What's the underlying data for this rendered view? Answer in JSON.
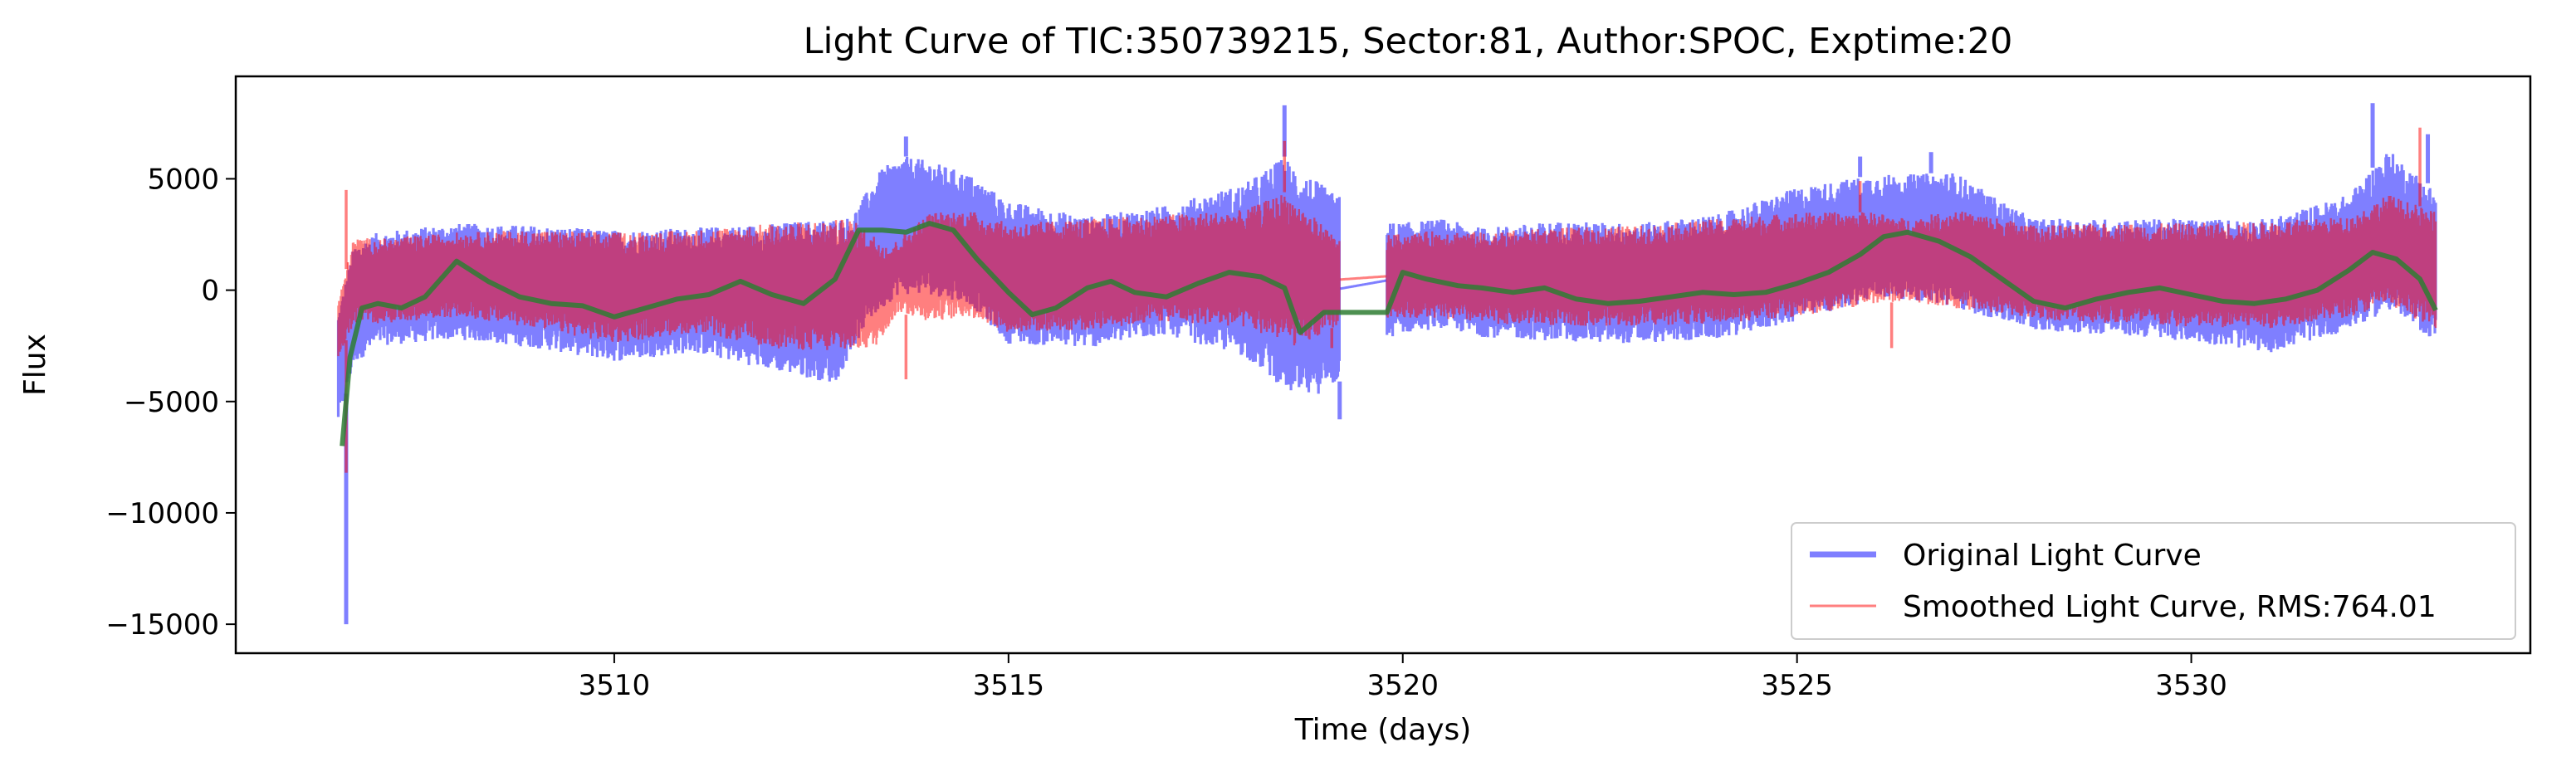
{
  "chart_data": {
    "type": "line",
    "title": "Light Curve of TIC:350739215, Sector:81, Author:SPOC, Exptime:20",
    "xlabel": "Time (days)",
    "ylabel": "Flux",
    "xlim": [
      3505.2,
      3534.3
    ],
    "ylim": [
      -16300,
      9600
    ],
    "xticks": [
      3510,
      3515,
      3520,
      3525,
      3530
    ],
    "xtick_labels": [
      "3510",
      "3515",
      "3520",
      "3525",
      "3530"
    ],
    "yticks": [
      -15000,
      -10000,
      -5000,
      0,
      5000
    ],
    "ytick_labels": [
      "−15000",
      "−10000",
      "−5000",
      "0",
      "5000"
    ],
    "grid": false,
    "legend_position": "lower-right",
    "gap": [
      3519.2,
      3519.8
    ],
    "series": [
      {
        "name": "Original Light Curve",
        "color": "#0000ff",
        "opacity": 0.5,
        "style": "noisy",
        "upper": [
          [
            3506.5,
            -1000
          ],
          [
            3506.7,
            2000
          ],
          [
            3507,
            2600
          ],
          [
            3508,
            3000
          ],
          [
            3509,
            2900
          ],
          [
            3510,
            2700
          ],
          [
            3511,
            2800
          ],
          [
            3512,
            3000
          ],
          [
            3513,
            3300
          ],
          [
            3513.4,
            5500
          ],
          [
            3513.7,
            6000
          ],
          [
            3514,
            5800
          ],
          [
            3514.5,
            5200
          ],
          [
            3515,
            4000
          ],
          [
            3516,
            3300
          ],
          [
            3517,
            3800
          ],
          [
            3518,
            4800
          ],
          [
            3518.5,
            6000
          ],
          [
            3519.1,
            4400
          ],
          [
            3519.9,
            3000
          ],
          [
            3520.5,
            3200
          ],
          [
            3521,
            2800
          ],
          [
            3522,
            3100
          ],
          [
            3523,
            3000
          ],
          [
            3524,
            3400
          ],
          [
            3525,
            4600
          ],
          [
            3526,
            5200
          ],
          [
            3526.4,
            5200
          ],
          [
            3527,
            5300
          ],
          [
            3527.5,
            4200
          ],
          [
            3528,
            3200
          ],
          [
            3529,
            3200
          ],
          [
            3530,
            3200
          ],
          [
            3531,
            3200
          ],
          [
            3532,
            4300
          ],
          [
            3532.5,
            6300
          ],
          [
            3533.1,
            4500
          ]
        ],
        "lower": [
          [
            3506.5,
            -6000
          ],
          [
            3506.7,
            -3300
          ],
          [
            3507,
            -2500
          ],
          [
            3508,
            -2200
          ],
          [
            3509,
            -2600
          ],
          [
            3510,
            -3200
          ],
          [
            3511,
            -2800
          ],
          [
            3512,
            -3600
          ],
          [
            3512.8,
            -4200
          ],
          [
            3513.2,
            -1500
          ],
          [
            3513.6,
            -200
          ],
          [
            3514,
            -200
          ],
          [
            3514.5,
            -600
          ],
          [
            3515,
            -2400
          ],
          [
            3516,
            -2600
          ],
          [
            3517,
            -2000
          ],
          [
            3518,
            -3000
          ],
          [
            3518.7,
            -5000
          ],
          [
            3519.1,
            -4400
          ],
          [
            3519.9,
            -2000
          ],
          [
            3520.5,
            -1700
          ],
          [
            3521,
            -2100
          ],
          [
            3522,
            -2300
          ],
          [
            3523,
            -2400
          ],
          [
            3524,
            -2200
          ],
          [
            3525,
            -1400
          ],
          [
            3526,
            -400
          ],
          [
            3526.4,
            -400
          ],
          [
            3527,
            -800
          ],
          [
            3528,
            -1800
          ],
          [
            3529,
            -2000
          ],
          [
            3530,
            -2300
          ],
          [
            3531,
            -2800
          ],
          [
            3532,
            -1800
          ],
          [
            3532.5,
            -900
          ],
          [
            3533.1,
            -2300
          ]
        ],
        "spikes": [
          [
            3506.6,
            -15000
          ],
          [
            3513.7,
            6900
          ],
          [
            3518.5,
            8300
          ],
          [
            3519.2,
            -5800
          ],
          [
            3525.8,
            6000
          ],
          [
            3526.7,
            6200
          ],
          [
            3532.3,
            8400
          ],
          [
            3533,
            7000
          ]
        ]
      },
      {
        "name": "Smoothed Light Curve, RMS:764.01",
        "color": "#ff0000",
        "opacity": 0.5,
        "style": "noisy",
        "upper": [
          [
            3506.5,
            -500
          ],
          [
            3506.7,
            2400
          ],
          [
            3507,
            2300
          ],
          [
            3508,
            2600
          ],
          [
            3509,
            2700
          ],
          [
            3510,
            2600
          ],
          [
            3511,
            2700
          ],
          [
            3512,
            3000
          ],
          [
            3513,
            3200
          ],
          [
            3513.5,
            2000
          ],
          [
            3514,
            3500
          ],
          [
            3514.5,
            3600
          ],
          [
            3515,
            3000
          ],
          [
            3516,
            3200
          ],
          [
            3517,
            3400
          ],
          [
            3518,
            3600
          ],
          [
            3518.5,
            4400
          ],
          [
            3519.1,
            2600
          ],
          [
            3519.9,
            2500
          ],
          [
            3520.5,
            2700
          ],
          [
            3521,
            2600
          ],
          [
            3522,
            2800
          ],
          [
            3523,
            2900
          ],
          [
            3524,
            3200
          ],
          [
            3525,
            3500
          ],
          [
            3526,
            3500
          ],
          [
            3526.4,
            3200
          ],
          [
            3527,
            3600
          ],
          [
            3527.5,
            3300
          ],
          [
            3528,
            2900
          ],
          [
            3529,
            3000
          ],
          [
            3530,
            3000
          ],
          [
            3531,
            3100
          ],
          [
            3532,
            3300
          ],
          [
            3532.5,
            4300
          ],
          [
            3533.1,
            3500
          ]
        ],
        "lower": [
          [
            3506.5,
            -3000
          ],
          [
            3506.7,
            -1500
          ],
          [
            3507,
            -1500
          ],
          [
            3508,
            -1200
          ],
          [
            3509,
            -1700
          ],
          [
            3510,
            -2400
          ],
          [
            3511,
            -1900
          ],
          [
            3512,
            -2600
          ],
          [
            3512.8,
            -2800
          ],
          [
            3513.3,
            -2600
          ],
          [
            3513.6,
            -1000
          ],
          [
            3514,
            -1400
          ],
          [
            3514.5,
            -1200
          ],
          [
            3515,
            -1900
          ],
          [
            3516,
            -1800
          ],
          [
            3517,
            -1400
          ],
          [
            3518,
            -1700
          ],
          [
            3518.7,
            -2600
          ],
          [
            3519.1,
            -1700
          ],
          [
            3519.9,
            -1200
          ],
          [
            3520.5,
            -1300
          ],
          [
            3521,
            -1500
          ],
          [
            3522,
            -1600
          ],
          [
            3523,
            -1600
          ],
          [
            3524,
            -1500
          ],
          [
            3525,
            -1200
          ],
          [
            3526,
            -600
          ],
          [
            3526.4,
            -500
          ],
          [
            3527,
            -800
          ],
          [
            3528,
            -1300
          ],
          [
            3529,
            -1500
          ],
          [
            3530,
            -1700
          ],
          [
            3531,
            -1700
          ],
          [
            3532,
            -1200
          ],
          [
            3532.5,
            -700
          ],
          [
            3533.1,
            -1700
          ]
        ],
        "spikes": [
          [
            3506.6,
            4500
          ],
          [
            3506.6,
            -8200
          ],
          [
            3513.7,
            -4000
          ],
          [
            3518.5,
            6700
          ],
          [
            3519.1,
            -2600
          ],
          [
            3525.8,
            4900
          ],
          [
            3526.2,
            -2600
          ],
          [
            3532.9,
            7300
          ]
        ]
      },
      {
        "name": "",
        "color": "#2e7d32",
        "opacity": 0.85,
        "style": "trend",
        "points": [
          [
            3506.55,
            -7000
          ],
          [
            3506.65,
            -3000
          ],
          [
            3506.8,
            -800
          ],
          [
            3507,
            -600
          ],
          [
            3507.3,
            -800
          ],
          [
            3507.6,
            -300
          ],
          [
            3508,
            1300
          ],
          [
            3508.4,
            400
          ],
          [
            3508.8,
            -300
          ],
          [
            3509.2,
            -600
          ],
          [
            3509.6,
            -700
          ],
          [
            3510,
            -1200
          ],
          [
            3510.4,
            -800
          ],
          [
            3510.8,
            -400
          ],
          [
            3511.2,
            -200
          ],
          [
            3511.6,
            400
          ],
          [
            3512,
            -200
          ],
          [
            3512.4,
            -600
          ],
          [
            3512.8,
            500
          ],
          [
            3513.1,
            2700
          ],
          [
            3513.4,
            2700
          ],
          [
            3513.7,
            2600
          ],
          [
            3514,
            3000
          ],
          [
            3514.3,
            2700
          ],
          [
            3514.6,
            1400
          ],
          [
            3515,
            -100
          ],
          [
            3515.3,
            -1100
          ],
          [
            3515.6,
            -800
          ],
          [
            3516,
            100
          ],
          [
            3516.3,
            400
          ],
          [
            3516.6,
            -100
          ],
          [
            3517,
            -300
          ],
          [
            3517.4,
            300
          ],
          [
            3517.8,
            800
          ],
          [
            3518.2,
            600
          ],
          [
            3518.5,
            100
          ],
          [
            3518.7,
            -1900
          ],
          [
            3519,
            -1000
          ],
          [
            3519.8,
            -1000
          ],
          [
            3520,
            800
          ],
          [
            3520.3,
            500
          ],
          [
            3520.7,
            200
          ],
          [
            3521,
            100
          ],
          [
            3521.4,
            -100
          ],
          [
            3521.8,
            100
          ],
          [
            3522.2,
            -400
          ],
          [
            3522.6,
            -600
          ],
          [
            3523,
            -500
          ],
          [
            3523.4,
            -300
          ],
          [
            3523.8,
            -100
          ],
          [
            3524.2,
            -200
          ],
          [
            3524.6,
            -100
          ],
          [
            3525,
            300
          ],
          [
            3525.4,
            800
          ],
          [
            3525.8,
            1600
          ],
          [
            3526.1,
            2400
          ],
          [
            3526.4,
            2600
          ],
          [
            3526.8,
            2200
          ],
          [
            3527.2,
            1500
          ],
          [
            3527.6,
            500
          ],
          [
            3528,
            -500
          ],
          [
            3528.4,
            -800
          ],
          [
            3528.8,
            -400
          ],
          [
            3529.2,
            -100
          ],
          [
            3529.6,
            100
          ],
          [
            3530,
            -200
          ],
          [
            3530.4,
            -500
          ],
          [
            3530.8,
            -600
          ],
          [
            3531.2,
            -400
          ],
          [
            3531.6,
            0
          ],
          [
            3532,
            900
          ],
          [
            3532.3,
            1700
          ],
          [
            3532.6,
            1400
          ],
          [
            3532.9,
            500
          ],
          [
            3533.1,
            -900
          ]
        ]
      }
    ]
  }
}
